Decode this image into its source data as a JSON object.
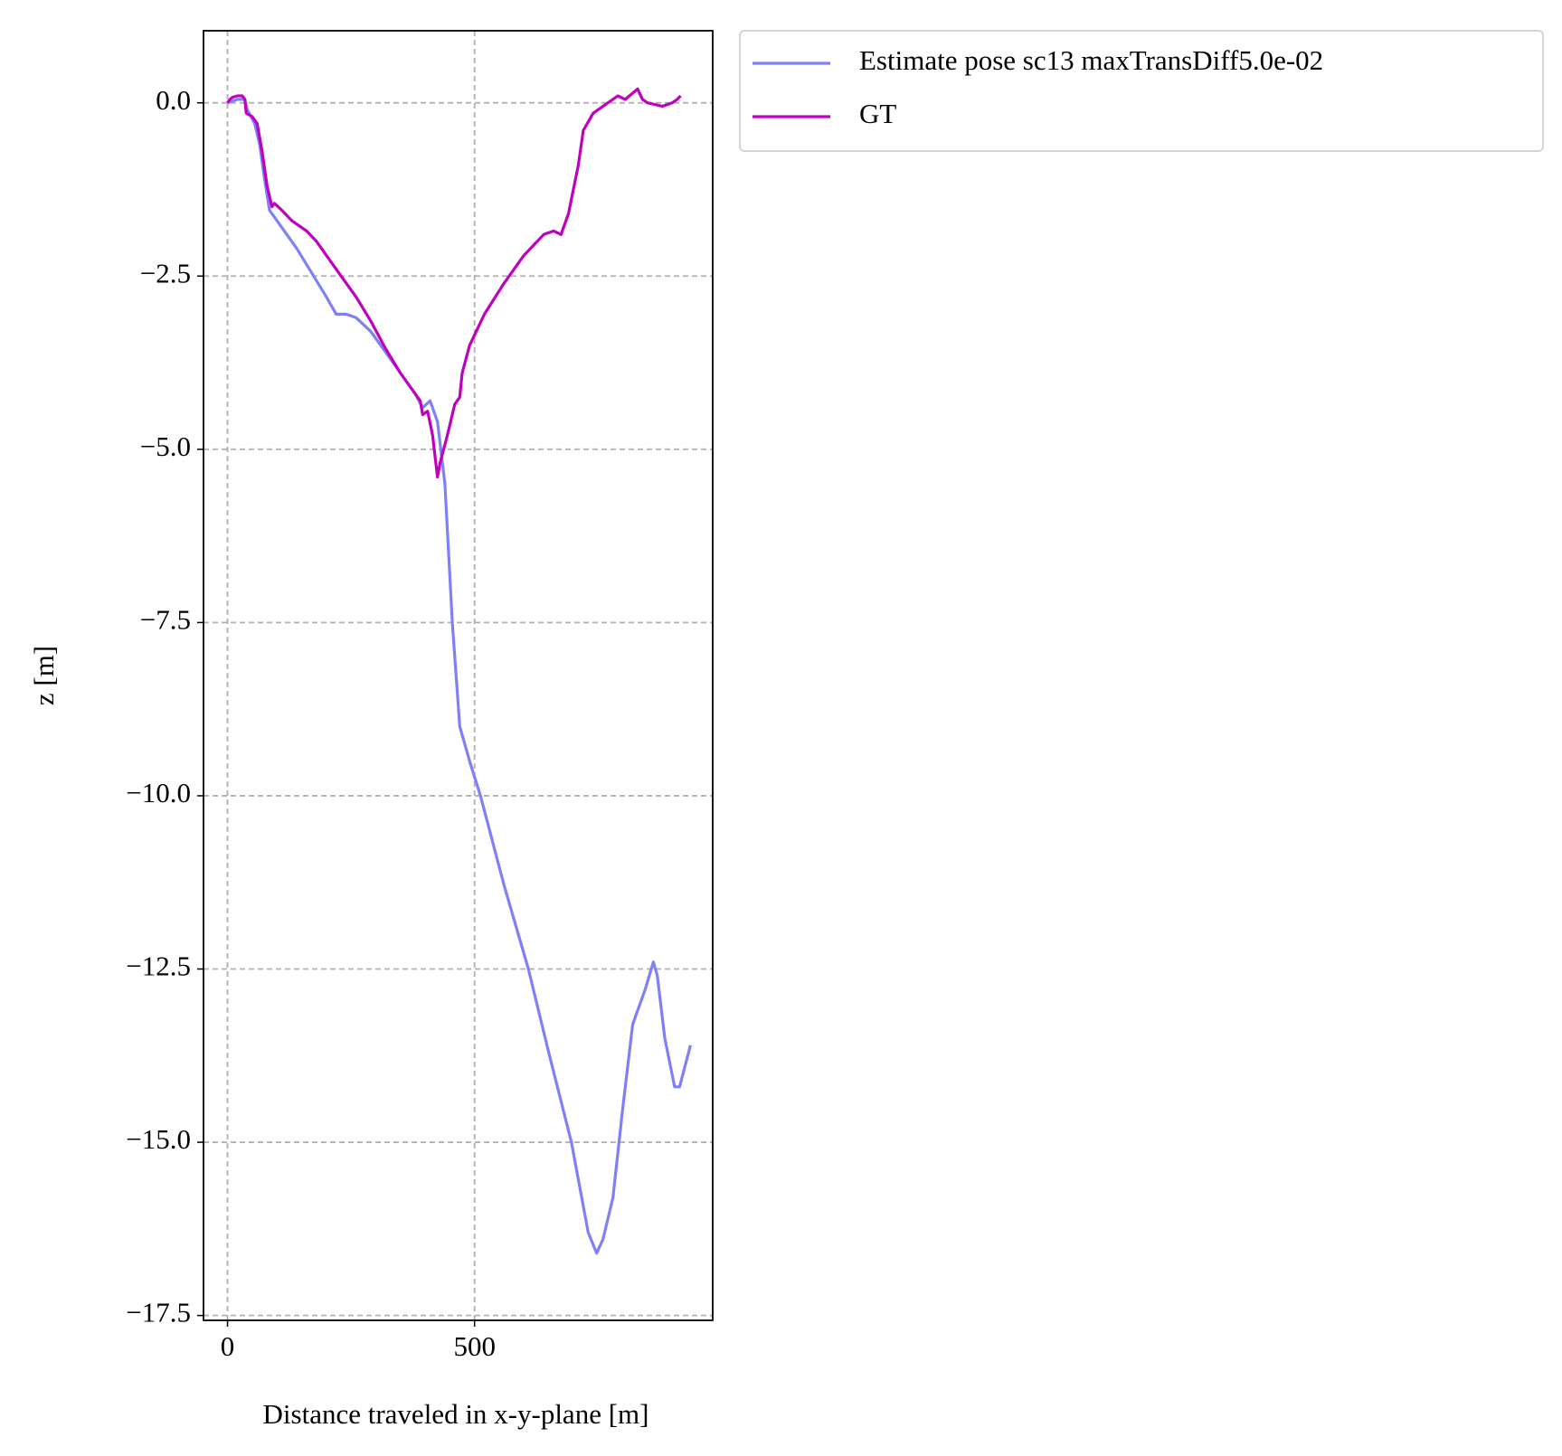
{
  "chart_data": {
    "type": "line",
    "xlabel": "Distance traveled in x-y-plane [m]",
    "ylabel": "z [m]",
    "xlim": [
      -48.6,
      982
    ],
    "ylim": [
      -17.57,
      1.04
    ],
    "xticks": [
      0,
      500
    ],
    "yticks": [
      {
        "value": 0,
        "label": "0.0"
      },
      {
        "value": -2.5,
        "label": "−2.5"
      },
      {
        "value": -5,
        "label": "−5.0"
      },
      {
        "value": -7.5,
        "label": "−7.5"
      },
      {
        "value": -10,
        "label": "−10.0"
      },
      {
        "value": -12.5,
        "label": "−12.5"
      },
      {
        "value": -15,
        "label": "−15.0"
      },
      {
        "value": -17.5,
        "label": "−17.5"
      }
    ],
    "grid": true,
    "legend": "outside upper right",
    "series": [
      {
        "name": "Estimate pose sc13 maxTransDiff5.0e-02",
        "color": "#7f7ff7",
        "x": [
          0,
          20,
          35,
          40,
          55,
          65,
          75,
          85,
          95,
          110,
          140,
          170,
          200,
          220,
          240,
          260,
          290,
          320,
          350,
          380,
          395,
          410,
          425,
          440,
          455,
          470,
          482,
          490,
          512,
          560,
          609,
          650,
          696,
          730,
          747,
          760,
          780,
          800,
          820,
          845,
          862,
          870,
          885,
          905,
          915,
          937
        ],
        "values": [
          0,
          0.05,
          0.05,
          -0.1,
          -0.3,
          -0.6,
          -1.1,
          -1.55,
          -1.65,
          -1.8,
          -2.1,
          -2.45,
          -2.8,
          -3.05,
          -3.05,
          -3.1,
          -3.3,
          -3.6,
          -3.9,
          -4.2,
          -4.4,
          -4.3,
          -4.6,
          -5.5,
          -7.5,
          -9.0,
          -9.3,
          -9.5,
          -10.0,
          -11.3,
          -12.5,
          -13.7,
          -15.0,
          -16.3,
          -16.6,
          -16.4,
          -15.8,
          -14.5,
          -13.3,
          -12.8,
          -12.4,
          -12.6,
          -13.5,
          -14.2,
          -14.2,
          -13.6
        ]
      },
      {
        "name": "GT",
        "color": "#bf00bf",
        "x": [
          0,
          5,
          10,
          20,
          30,
          35,
          38,
          50,
          60,
          70,
          80,
          90,
          95,
          110,
          130,
          160,
          180,
          200,
          230,
          260,
          290,
          320,
          350,
          380,
          390,
          395,
          405,
          415,
          425,
          430,
          445,
          460,
          470,
          475,
          490,
          520,
          560,
          600,
          640,
          660,
          675,
          690,
          710,
          720,
          740,
          770,
          790,
          805,
          830,
          840,
          850,
          880,
          900,
          910,
          917
        ],
        "values": [
          0,
          0.05,
          0.08,
          0.1,
          0.1,
          0.05,
          -0.15,
          -0.2,
          -0.3,
          -0.7,
          -1.2,
          -1.5,
          -1.45,
          -1.55,
          -1.7,
          -1.85,
          -2.0,
          -2.2,
          -2.5,
          -2.8,
          -3.15,
          -3.55,
          -3.9,
          -4.2,
          -4.3,
          -4.5,
          -4.45,
          -4.8,
          -5.4,
          -5.2,
          -4.8,
          -4.35,
          -4.25,
          -3.9,
          -3.5,
          -3.05,
          -2.6,
          -2.2,
          -1.9,
          -1.85,
          -1.9,
          -1.6,
          -0.9,
          -0.4,
          -0.15,
          0,
          0.1,
          0.05,
          0.2,
          0.05,
          0,
          -0.05,
          0,
          0.05,
          0.1
        ]
      }
    ]
  }
}
